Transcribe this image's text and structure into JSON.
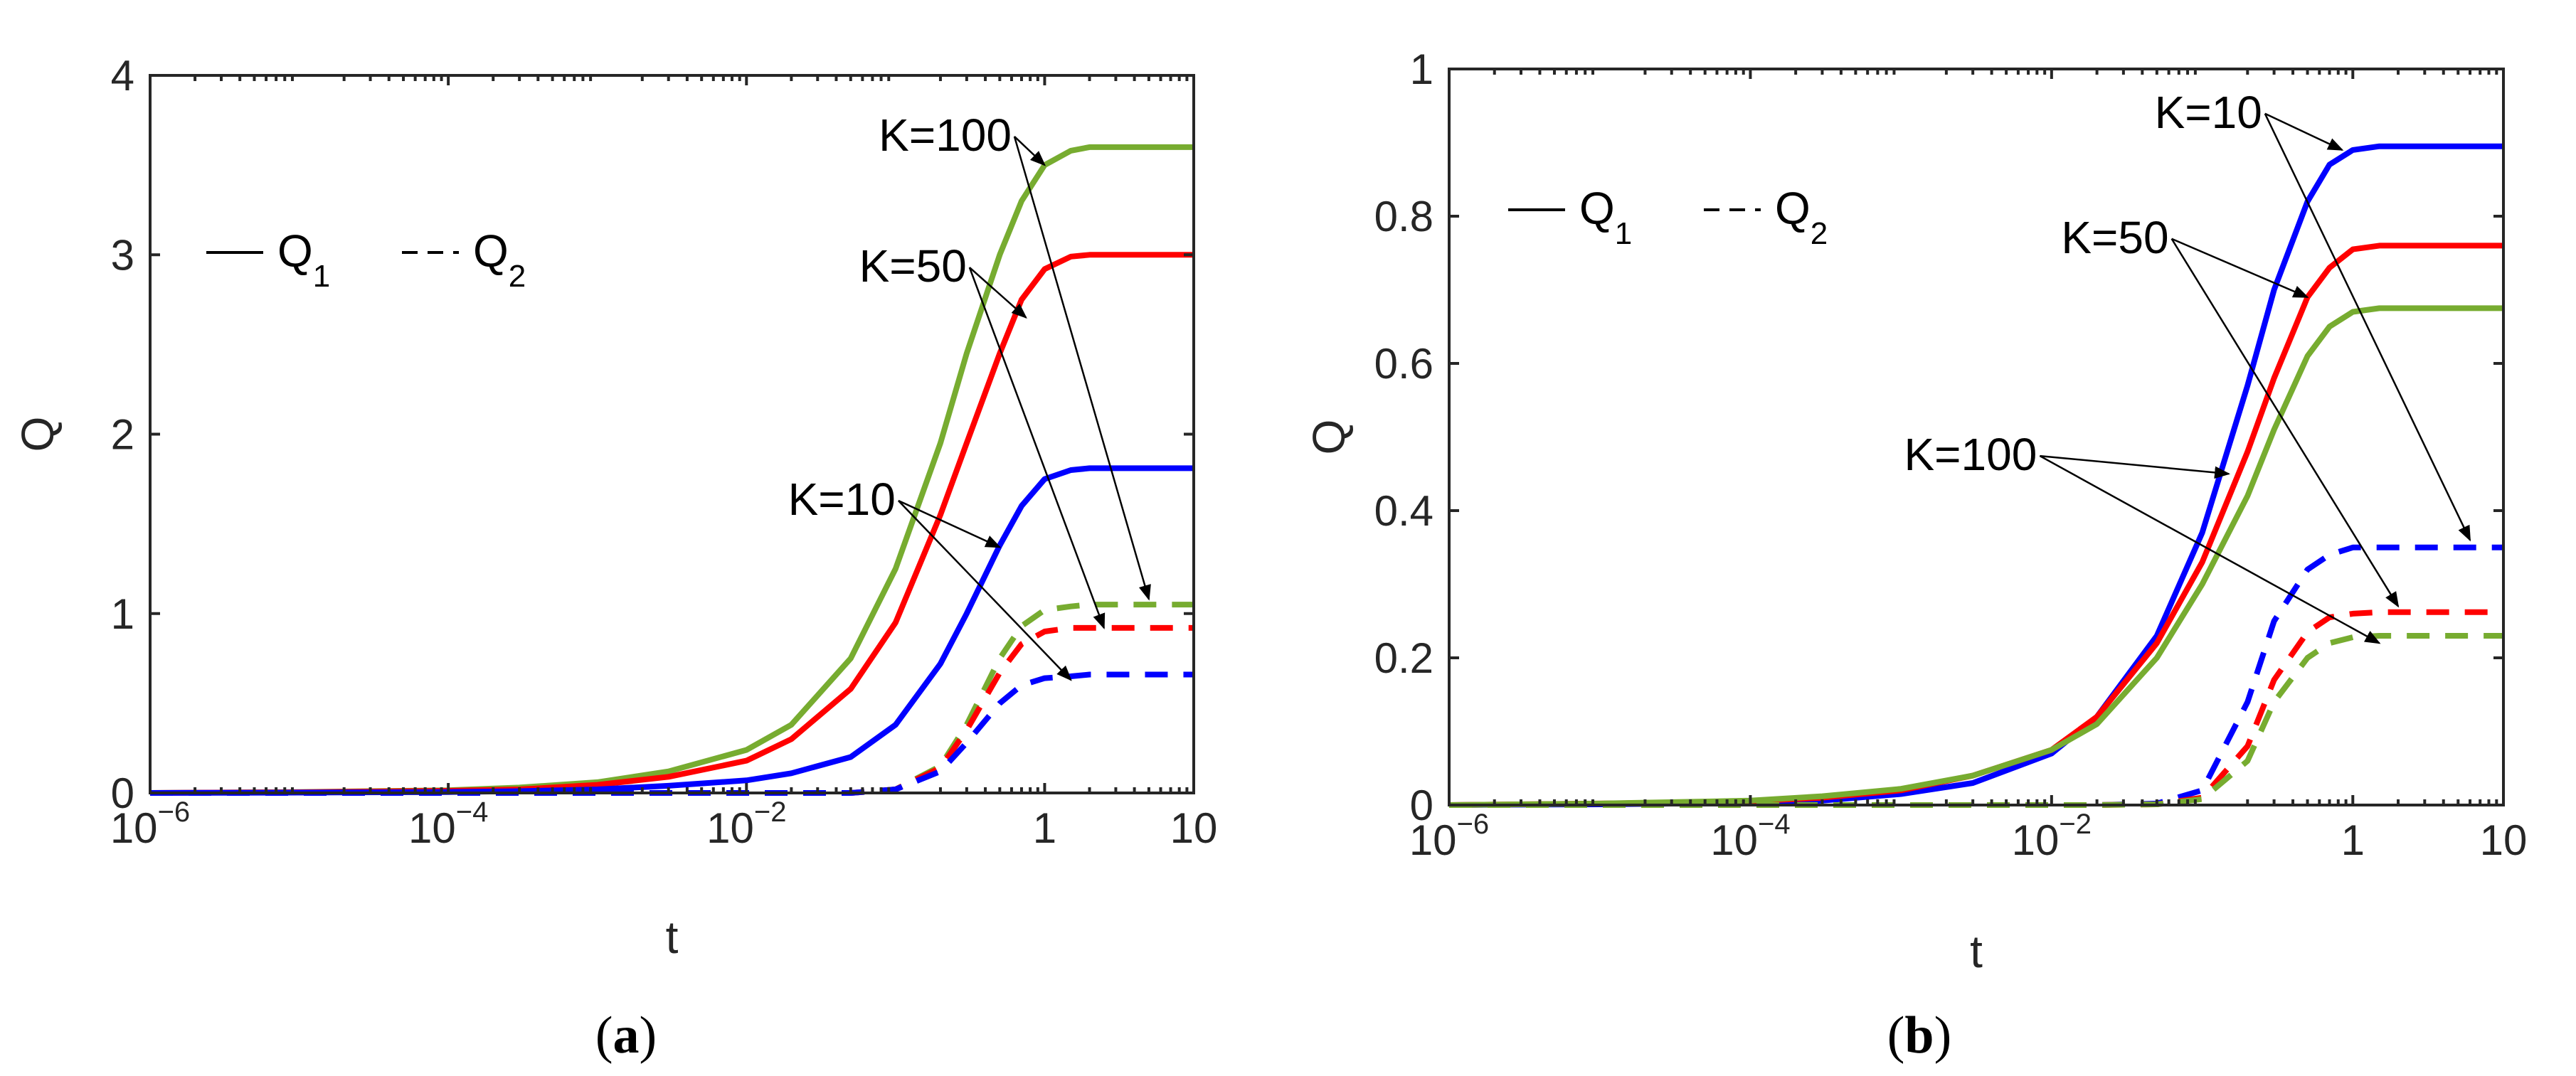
{
  "chart_data": [
    {
      "panel": "a",
      "panel_label": "a",
      "type": "line",
      "xscale": "log",
      "xlim": [
        1e-06,
        10
      ],
      "ylim": [
        0,
        4
      ],
      "xlabel": "t",
      "ylabel": "Q",
      "xticks": [
        {
          "value": 1e-06,
          "base": "10",
          "exp": "−6"
        },
        {
          "value": 0.0001,
          "base": "10",
          "exp": "−4"
        },
        {
          "value": 0.01,
          "base": "10",
          "exp": "−2"
        },
        {
          "value": 1,
          "base": "1",
          "exp": ""
        },
        {
          "value": 10,
          "base": "10",
          "exp": ""
        }
      ],
      "yticks": [
        {
          "value": 0,
          "label": "0"
        },
        {
          "value": 1,
          "label": "1"
        },
        {
          "value": 2,
          "label": "2"
        },
        {
          "value": 3,
          "label": "3"
        },
        {
          "value": 4,
          "label": "4"
        }
      ],
      "legend": {
        "solid": {
          "main": "Q",
          "sub": "1"
        },
        "dashed": {
          "main": "Q",
          "sub": "2"
        }
      },
      "t_grid": [
        1e-06,
        1e-05,
        0.0001,
        0.0003,
        0.001,
        0.003,
        0.01,
        0.02,
        0.05,
        0.1,
        0.2,
        0.3,
        0.5,
        0.7,
        1,
        1.5,
        2,
        3,
        5,
        10
      ],
      "series": [
        {
          "name": "Q1, K=100",
          "color": "#77AC30",
          "dash": false,
          "values": [
            0,
            0.005,
            0.015,
            0.03,
            0.06,
            0.12,
            0.24,
            0.38,
            0.75,
            1.25,
            1.95,
            2.45,
            3.0,
            3.3,
            3.5,
            3.58,
            3.6,
            3.6,
            3.6,
            3.6
          ]
        },
        {
          "name": "Q1, K=50",
          "color": "#FF0000",
          "dash": false,
          "values": [
            0,
            0.004,
            0.012,
            0.02,
            0.045,
            0.09,
            0.18,
            0.3,
            0.58,
            0.95,
            1.55,
            1.95,
            2.45,
            2.75,
            2.92,
            2.99,
            3.0,
            3.0,
            3.0,
            3.0
          ]
        },
        {
          "name": "Q1, K=10",
          "color": "#0000FF",
          "dash": false,
          "values": [
            0,
            0.002,
            0.005,
            0.01,
            0.02,
            0.04,
            0.07,
            0.11,
            0.2,
            0.38,
            0.72,
            1.0,
            1.38,
            1.6,
            1.75,
            1.8,
            1.81,
            1.81,
            1.81,
            1.81
          ]
        },
        {
          "name": "Q2, K=100",
          "color": "#77AC30",
          "dash": true,
          "values": [
            0,
            0,
            0,
            0,
            0,
            0,
            0,
            0,
            0,
            0.02,
            0.15,
            0.38,
            0.75,
            0.93,
            1.02,
            1.04,
            1.05,
            1.05,
            1.05,
            1.05
          ]
        },
        {
          "name": "Q2, K=50",
          "color": "#FF0000",
          "dash": true,
          "values": [
            0,
            0,
            0,
            0,
            0,
            0,
            0,
            0,
            0,
            0.02,
            0.14,
            0.35,
            0.67,
            0.83,
            0.9,
            0.92,
            0.92,
            0.92,
            0.92,
            0.92
          ]
        },
        {
          "name": "Q2, K=10",
          "color": "#0000FF",
          "dash": true,
          "values": [
            0,
            0,
            0,
            0,
            0,
            0,
            0,
            0,
            0,
            0.02,
            0.12,
            0.28,
            0.5,
            0.6,
            0.64,
            0.65,
            0.66,
            0.66,
            0.66,
            0.66
          ]
        }
      ],
      "annotations": [
        {
          "text": "K=100",
          "text_t": 0.6,
          "text_q": 3.58,
          "targets": [
            {
              "t": 1.0,
              "q": 3.5
            },
            {
              "t": 5.0,
              "q": 1.08
            }
          ]
        },
        {
          "text": "K=50",
          "text_t": 0.3,
          "text_q": 2.85,
          "targets": [
            {
              "t": 0.75,
              "q": 2.65
            },
            {
              "t": 2.5,
              "q": 0.92
            }
          ]
        },
        {
          "text": "K=10",
          "text_t": 0.1,
          "text_q": 1.55,
          "targets": [
            {
              "t": 0.5,
              "q": 1.37
            },
            {
              "t": 1.5,
              "q": 0.63
            }
          ]
        }
      ]
    },
    {
      "panel": "b",
      "panel_label": "b",
      "type": "line",
      "xscale": "log",
      "xlim": [
        1e-06,
        10
      ],
      "ylim": [
        0,
        1
      ],
      "xlabel": "t",
      "ylabel": "Q",
      "xticks": [
        {
          "value": 1e-06,
          "base": "10",
          "exp": "−6"
        },
        {
          "value": 0.0001,
          "base": "10",
          "exp": "−4"
        },
        {
          "value": 0.01,
          "base": "10",
          "exp": "−2"
        },
        {
          "value": 1,
          "base": "1",
          "exp": ""
        },
        {
          "value": 10,
          "base": "10",
          "exp": ""
        }
      ],
      "yticks": [
        {
          "value": 0,
          "label": "0"
        },
        {
          "value": 0.2,
          "label": "0.2"
        },
        {
          "value": 0.4,
          "label": "0.4"
        },
        {
          "value": 0.6,
          "label": "0.6"
        },
        {
          "value": 0.8,
          "label": "0.8"
        },
        {
          "value": 1,
          "label": "1"
        }
      ],
      "legend": {
        "solid": {
          "main": "Q",
          "sub": "1"
        },
        "dashed": {
          "main": "Q",
          "sub": "2"
        }
      },
      "t_grid": [
        1e-06,
        1e-05,
        0.0001,
        0.0003,
        0.001,
        0.003,
        0.01,
        0.02,
        0.05,
        0.1,
        0.2,
        0.3,
        0.5,
        0.7,
        1,
        1.5,
        2,
        3,
        5,
        10
      ],
      "series": [
        {
          "name": "Q1, K=10",
          "color": "#0000FF",
          "dash": false,
          "values": [
            0,
            0.001,
            0.003,
            0.006,
            0.015,
            0.03,
            0.07,
            0.12,
            0.23,
            0.37,
            0.57,
            0.7,
            0.82,
            0.87,
            0.89,
            0.895,
            0.895,
            0.895,
            0.895,
            0.895
          ]
        },
        {
          "name": "Q1, K=50",
          "color": "#FF0000",
          "dash": false,
          "values": [
            0,
            0.002,
            0.005,
            0.01,
            0.02,
            0.04,
            0.075,
            0.12,
            0.22,
            0.33,
            0.48,
            0.58,
            0.69,
            0.73,
            0.755,
            0.76,
            0.76,
            0.76,
            0.76,
            0.76
          ]
        },
        {
          "name": "Q1, K=100",
          "color": "#77AC30",
          "dash": false,
          "values": [
            0,
            0.002,
            0.006,
            0.012,
            0.022,
            0.04,
            0.075,
            0.11,
            0.2,
            0.3,
            0.42,
            0.51,
            0.61,
            0.65,
            0.67,
            0.675,
            0.675,
            0.675,
            0.675,
            0.675
          ]
        },
        {
          "name": "Q2, K=10",
          "color": "#0000FF",
          "dash": true,
          "values": [
            0,
            0,
            0,
            0,
            0,
            0,
            0,
            0,
            0.002,
            0.02,
            0.14,
            0.25,
            0.32,
            0.34,
            0.35,
            0.35,
            0.35,
            0.35,
            0.35,
            0.35
          ]
        },
        {
          "name": "Q2, K=50",
          "color": "#FF0000",
          "dash": true,
          "values": [
            0,
            0,
            0,
            0,
            0,
            0,
            0,
            0,
            0.001,
            0.01,
            0.08,
            0.17,
            0.235,
            0.255,
            0.26,
            0.262,
            0.262,
            0.262,
            0.262,
            0.262
          ]
        },
        {
          "name": "Q2, K=100",
          "color": "#77AC30",
          "dash": true,
          "values": [
            0,
            0,
            0,
            0,
            0,
            0,
            0,
            0,
            0.001,
            0.008,
            0.06,
            0.14,
            0.2,
            0.22,
            0.228,
            0.23,
            0.23,
            0.23,
            0.23,
            0.23
          ]
        }
      ],
      "annotations": [
        {
          "text": "K=10",
          "text_t": 0.25,
          "text_q": 0.92,
          "targets": [
            {
              "t": 0.85,
              "q": 0.89
            },
            {
              "t": 6.0,
              "q": 0.36
            }
          ]
        },
        {
          "text": "K=50",
          "text_t": 0.06,
          "text_q": 0.75,
          "targets": [
            {
              "t": 0.5,
              "q": 0.69
            },
            {
              "t": 2.0,
              "q": 0.27
            }
          ]
        },
        {
          "text": "K=100",
          "text_t": 0.008,
          "text_q": 0.455,
          "targets": [
            {
              "t": 0.15,
              "q": 0.45
            },
            {
              "t": 1.5,
              "q": 0.22
            }
          ]
        }
      ]
    }
  ]
}
